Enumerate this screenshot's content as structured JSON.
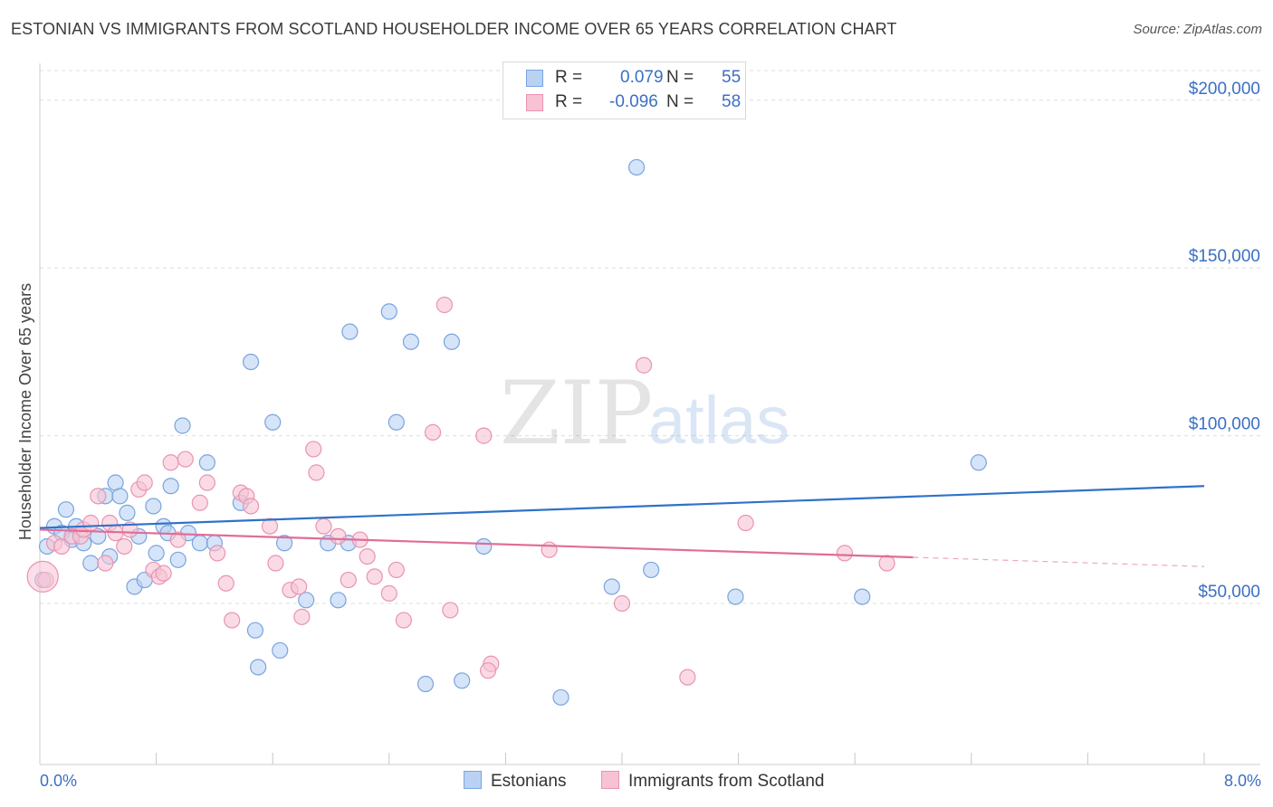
{
  "title": "ESTONIAN VS IMMIGRANTS FROM SCOTLAND HOUSEHOLDER INCOME OVER 65 YEARS CORRELATION CHART",
  "source": "Source: ZipAtlas.com",
  "watermark": {
    "zip": "ZIP",
    "atlas": "atlas"
  },
  "colors": {
    "blue_fill": "#b9d2f4",
    "blue_stroke": "#7aa4de",
    "blue_line": "#2f72c8",
    "pink_fill": "#f7c3d4",
    "pink_stroke": "#ea93b0",
    "pink_line": "#e06d98",
    "grid": "#dddddd",
    "tick_text": "#3b6fc4"
  },
  "legend": {
    "r_label": "R =",
    "n_label": "N =",
    "series": [
      {
        "r": "0.079",
        "n": "55"
      },
      {
        "r": "-0.096",
        "n": "58"
      }
    ]
  },
  "bottom_legend": [
    "Estonians",
    "Immigrants from Scotland"
  ],
  "chart_data": {
    "type": "scatter",
    "title": "ESTONIAN VS IMMIGRANTS FROM SCOTLAND HOUSEHOLDER INCOME OVER 65 YEARS CORRELATION CHART",
    "xlabel": "",
    "ylabel": "Householder Income Over 65 years",
    "xlim": [
      0,
      8
    ],
    "ylim": [
      2000,
      211000
    ],
    "x_ticks_labeled": [
      {
        "value": 0,
        "label": "0.0%"
      },
      {
        "value": 8,
        "label": "8.0%"
      }
    ],
    "y_ticks": [
      {
        "value": 50000,
        "label": "$50,000"
      },
      {
        "value": 100000,
        "label": "$100,000"
      },
      {
        "value": 150000,
        "label": "$150,000"
      },
      {
        "value": 200000,
        "label": "$200,000"
      }
    ],
    "x_minor_ticks": [
      0.8,
      1.6,
      2.4,
      3.2,
      4.0,
      4.8,
      5.6,
      6.4,
      7.2,
      8.0
    ],
    "grid": true,
    "series": [
      {
        "name": "Estonians",
        "r": 0.079,
        "n": 55,
        "trend": {
          "x0": 0,
          "y0": 72500,
          "x1": 8,
          "y1": 85000,
          "solid_until": 8
        },
        "points": [
          [
            0.05,
            67000
          ],
          [
            0.1,
            73000
          ],
          [
            0.15,
            71000
          ],
          [
            0.18,
            78000
          ],
          [
            0.22,
            69000
          ],
          [
            0.25,
            73000
          ],
          [
            0.3,
            68000
          ],
          [
            0.35,
            62000
          ],
          [
            0.4,
            70000
          ],
          [
            0.45,
            82000
          ],
          [
            0.48,
            64000
          ],
          [
            0.52,
            86000
          ],
          [
            0.55,
            82000
          ],
          [
            0.6,
            77000
          ],
          [
            0.65,
            55000
          ],
          [
            0.68,
            70000
          ],
          [
            0.72,
            57000
          ],
          [
            0.78,
            79000
          ],
          [
            0.8,
            65000
          ],
          [
            0.85,
            73000
          ],
          [
            0.88,
            71000
          ],
          [
            0.9,
            85000
          ],
          [
            0.95,
            63000
          ],
          [
            0.98,
            103000
          ],
          [
            1.02,
            71000
          ],
          [
            1.1,
            68000
          ],
          [
            1.15,
            92000
          ],
          [
            1.2,
            68000
          ],
          [
            1.38,
            80000
          ],
          [
            1.45,
            122000
          ],
          [
            1.48,
            42000
          ],
          [
            1.6,
            104000
          ],
          [
            1.68,
            68000
          ],
          [
            1.83,
            51000
          ],
          [
            1.98,
            68000
          ],
          [
            2.05,
            51000
          ],
          [
            2.12,
            68000
          ],
          [
            2.13,
            131000
          ],
          [
            2.4,
            137000
          ],
          [
            2.45,
            104000
          ],
          [
            2.55,
            128000
          ],
          [
            2.65,
            26000
          ],
          [
            2.83,
            128000
          ],
          [
            2.9,
            27000
          ],
          [
            3.05,
            67000
          ],
          [
            3.58,
            22000
          ],
          [
            3.93,
            55000
          ],
          [
            4.1,
            180000
          ],
          [
            4.2,
            60000
          ],
          [
            4.78,
            52000
          ],
          [
            5.65,
            52000
          ],
          [
            6.45,
            92000
          ],
          [
            0.02,
            57000
          ],
          [
            1.5,
            31000
          ],
          [
            1.65,
            36000
          ]
        ]
      },
      {
        "name": "Immigrants from Scotland",
        "r": -0.096,
        "n": 58,
        "trend": {
          "x0": 0,
          "y0": 72000,
          "x1": 8,
          "y1": 61000,
          "solid_until": 6.0
        },
        "points": [
          [
            0.04,
            57000
          ],
          [
            0.1,
            68000
          ],
          [
            0.15,
            67000
          ],
          [
            0.22,
            70000
          ],
          [
            0.28,
            70000
          ],
          [
            0.3,
            72000
          ],
          [
            0.35,
            74000
          ],
          [
            0.4,
            82000
          ],
          [
            0.45,
            62000
          ],
          [
            0.48,
            74000
          ],
          [
            0.52,
            71000
          ],
          [
            0.58,
            67000
          ],
          [
            0.62,
            72000
          ],
          [
            0.68,
            84000
          ],
          [
            0.72,
            86000
          ],
          [
            0.78,
            60000
          ],
          [
            0.82,
            58000
          ],
          [
            0.85,
            59000
          ],
          [
            0.9,
            92000
          ],
          [
            0.95,
            69000
          ],
          [
            1.0,
            93000
          ],
          [
            1.1,
            80000
          ],
          [
            1.15,
            86000
          ],
          [
            1.22,
            65000
          ],
          [
            1.28,
            56000
          ],
          [
            1.32,
            45000
          ],
          [
            1.38,
            83000
          ],
          [
            1.42,
            82000
          ],
          [
            1.45,
            79000
          ],
          [
            1.58,
            73000
          ],
          [
            1.62,
            62000
          ],
          [
            1.72,
            54000
          ],
          [
            1.78,
            55000
          ],
          [
            1.8,
            46000
          ],
          [
            1.88,
            96000
          ],
          [
            1.9,
            89000
          ],
          [
            1.95,
            73000
          ],
          [
            2.05,
            70000
          ],
          [
            2.12,
            57000
          ],
          [
            2.2,
            69000
          ],
          [
            2.25,
            64000
          ],
          [
            2.3,
            58000
          ],
          [
            2.4,
            53000
          ],
          [
            2.45,
            60000
          ],
          [
            2.5,
            45000
          ],
          [
            2.7,
            101000
          ],
          [
            2.78,
            139000
          ],
          [
            2.82,
            48000
          ],
          [
            3.05,
            100000
          ],
          [
            3.1,
            32000
          ],
          [
            3.08,
            30000
          ],
          [
            3.5,
            66000
          ],
          [
            4.0,
            50000
          ],
          [
            4.15,
            121000
          ],
          [
            4.45,
            28000
          ],
          [
            4.85,
            74000
          ],
          [
            5.53,
            65000
          ],
          [
            5.82,
            62000
          ]
        ]
      }
    ]
  }
}
